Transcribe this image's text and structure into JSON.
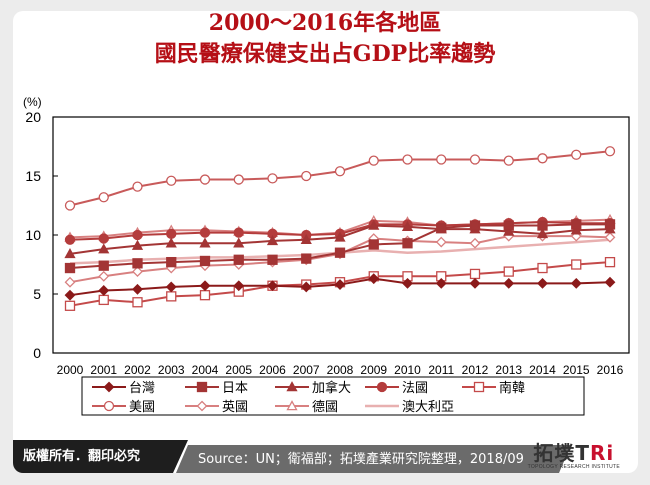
{
  "title": {
    "line1": "2000～2016年各地區",
    "line2": "國民醫療保健支出占GDP比率趨勢"
  },
  "chart_data": {
    "type": "line",
    "title": "2000～2016年各地區國民醫療保健支出占GDP比率趨勢",
    "xlabel": "",
    "ylabel": "(%)",
    "ylim": [
      0,
      20
    ],
    "yticks": [
      0,
      5,
      10,
      15,
      20
    ],
    "grid": false,
    "legend_position": "bottom",
    "categories": [
      "2000",
      "2001",
      "2002",
      "2003",
      "2004",
      "2005",
      "2006",
      "2007",
      "2008",
      "2009",
      "2010",
      "2011",
      "2012",
      "2013",
      "2014",
      "2015",
      "2016"
    ],
    "series": [
      {
        "name": "台灣",
        "marker": "diamond-filled",
        "color": "#8b1a1a",
        "values": [
          4.9,
          5.3,
          5.4,
          5.6,
          5.7,
          5.7,
          5.7,
          5.6,
          5.8,
          6.3,
          5.9,
          5.9,
          5.9,
          5.9,
          5.9,
          5.9,
          6.0
        ]
      },
      {
        "name": "日本",
        "marker": "square-filled",
        "color": "#a33535",
        "values": [
          7.2,
          7.4,
          7.6,
          7.7,
          7.8,
          7.9,
          7.9,
          8.0,
          8.5,
          9.2,
          9.3,
          10.6,
          10.8,
          10.8,
          10.8,
          10.9,
          10.9
        ]
      },
      {
        "name": "加拿大",
        "marker": "triangle-filled",
        "color": "#a33535",
        "values": [
          8.4,
          8.8,
          9.1,
          9.3,
          9.3,
          9.3,
          9.5,
          9.6,
          9.8,
          10.8,
          10.7,
          10.5,
          10.5,
          10.3,
          10.1,
          10.4,
          10.5
        ]
      },
      {
        "name": "法國",
        "marker": "circle-filled",
        "color": "#b43c3c",
        "values": [
          9.6,
          9.7,
          10.0,
          10.1,
          10.2,
          10.2,
          10.1,
          10.0,
          10.1,
          10.9,
          10.9,
          10.8,
          10.9,
          11.0,
          11.1,
          11.0,
          11.0
        ]
      },
      {
        "name": "南韓",
        "marker": "square-open",
        "color": "#c44a4a",
        "values": [
          4.0,
          4.5,
          4.3,
          4.8,
          4.9,
          5.2,
          5.7,
          5.8,
          6.0,
          6.5,
          6.5,
          6.5,
          6.7,
          6.9,
          7.2,
          7.5,
          7.7
        ]
      },
      {
        "name": "美國",
        "marker": "circle-open",
        "color": "#c85a5a",
        "values": [
          12.5,
          13.2,
          14.1,
          14.6,
          14.7,
          14.7,
          14.8,
          15.0,
          15.4,
          16.3,
          16.4,
          16.4,
          16.4,
          16.3,
          16.5,
          16.8,
          17.1
        ]
      },
      {
        "name": "英國",
        "marker": "diamond-open",
        "color": "#d88080",
        "values": [
          6.0,
          6.5,
          6.9,
          7.2,
          7.4,
          7.5,
          7.7,
          7.9,
          8.4,
          9.7,
          9.5,
          9.4,
          9.3,
          9.9,
          9.9,
          9.9,
          9.8
        ]
      },
      {
        "name": "德國",
        "marker": "triangle-open",
        "color": "#d88080",
        "values": [
          9.8,
          9.9,
          10.2,
          10.4,
          10.4,
          10.3,
          10.2,
          10.0,
          10.2,
          11.2,
          11.1,
          10.8,
          10.9,
          11.0,
          11.1,
          11.2,
          11.3
        ]
      },
      {
        "name": "澳大利亞",
        "marker": "none",
        "color": "#e8b0b0",
        "values": [
          7.6,
          7.7,
          7.9,
          8.0,
          8.1,
          8.1,
          8.2,
          8.3,
          8.5,
          8.7,
          8.5,
          8.6,
          8.8,
          9.0,
          9.2,
          9.4,
          9.6
        ]
      }
    ]
  },
  "legend": {
    "items": [
      "台灣",
      "日本",
      "加拿大",
      "法國",
      "南韓",
      "美國",
      "英國",
      "德國",
      "澳大利亞"
    ]
  },
  "footer": {
    "copyright": "版權所有．翻印必究",
    "source": "Source：UN；衛福部；拓墣產業研究院整理，2018/09",
    "logo_text": "拓墣TRi",
    "logo_sub": "TOPOLOGY RESEARCH INSTITUTE"
  }
}
